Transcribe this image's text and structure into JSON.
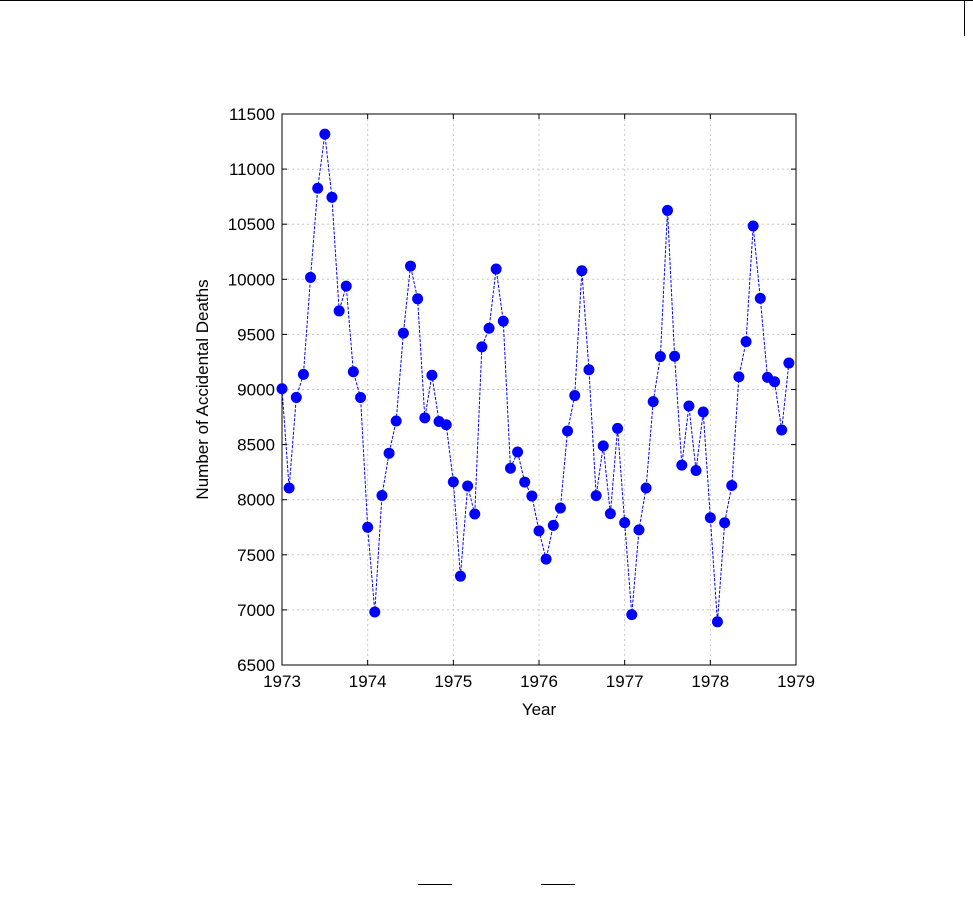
{
  "chart_data": {
    "type": "line",
    "title": "",
    "xlabel": "Year",
    "ylabel": "Number of Accidental Deaths",
    "xlim": [
      1973,
      1979
    ],
    "ylim": [
      6500,
      11500
    ],
    "xticks": [
      1973,
      1974,
      1975,
      1976,
      1977,
      1978,
      1979
    ],
    "yticks": [
      6500,
      7000,
      7500,
      8000,
      8500,
      9000,
      9500,
      10000,
      10500,
      11000,
      11500
    ],
    "grid": true,
    "legend": "none",
    "color": "#0000ff",
    "marker": "circle",
    "series": [
      {
        "x": [
          1973.0,
          1973.083,
          1973.167,
          1973.25,
          1973.333,
          1973.417,
          1973.5,
          1973.583,
          1973.667,
          1973.75,
          1973.833,
          1973.917,
          1974.0,
          1974.083,
          1974.167,
          1974.25,
          1974.333,
          1974.417,
          1974.5,
          1974.583,
          1974.667,
          1974.75,
          1974.833,
          1974.917,
          1975.0,
          1975.083,
          1975.167,
          1975.25,
          1975.333,
          1975.417,
          1975.5,
          1975.583,
          1975.667,
          1975.75,
          1975.833,
          1975.917,
          1976.0,
          1976.083,
          1976.167,
          1976.25,
          1976.333,
          1976.417,
          1976.5,
          1976.583,
          1976.667,
          1976.75,
          1976.833,
          1976.917,
          1977.0,
          1977.083,
          1977.167,
          1977.25,
          1977.333,
          1977.417,
          1977.5,
          1977.583,
          1977.667,
          1977.75,
          1977.833,
          1977.917,
          1978.0,
          1978.083,
          1978.167,
          1978.25,
          1978.333,
          1978.417,
          1978.5,
          1978.583,
          1978.667,
          1978.75,
          1978.833,
          1978.917
        ],
        "y": [
          9007,
          8106,
          8928,
          9137,
          10017,
          10826,
          11317,
          10744,
          9713,
          9938,
          9161,
          8927,
          7750,
          6981,
          8038,
          8422,
          8714,
          9512,
          10120,
          9823,
          8743,
          9129,
          8710,
          8680,
          8162,
          7306,
          8124,
          7870,
          9387,
          9556,
          10093,
          9620,
          8285,
          8433,
          8160,
          8034,
          7717,
          7461,
          7767,
          7925,
          8623,
          8945,
          10078,
          9179,
          8037,
          8488,
          7874,
          8647,
          7792,
          6957,
          7726,
          8106,
          8890,
          9299,
          10625,
          9302,
          8314,
          8850,
          8265,
          8796,
          7836,
          6892,
          7791,
          8129,
          9115,
          9434,
          10484,
          9827,
          9110,
          9070,
          8633,
          9240
        ]
      }
    ]
  }
}
